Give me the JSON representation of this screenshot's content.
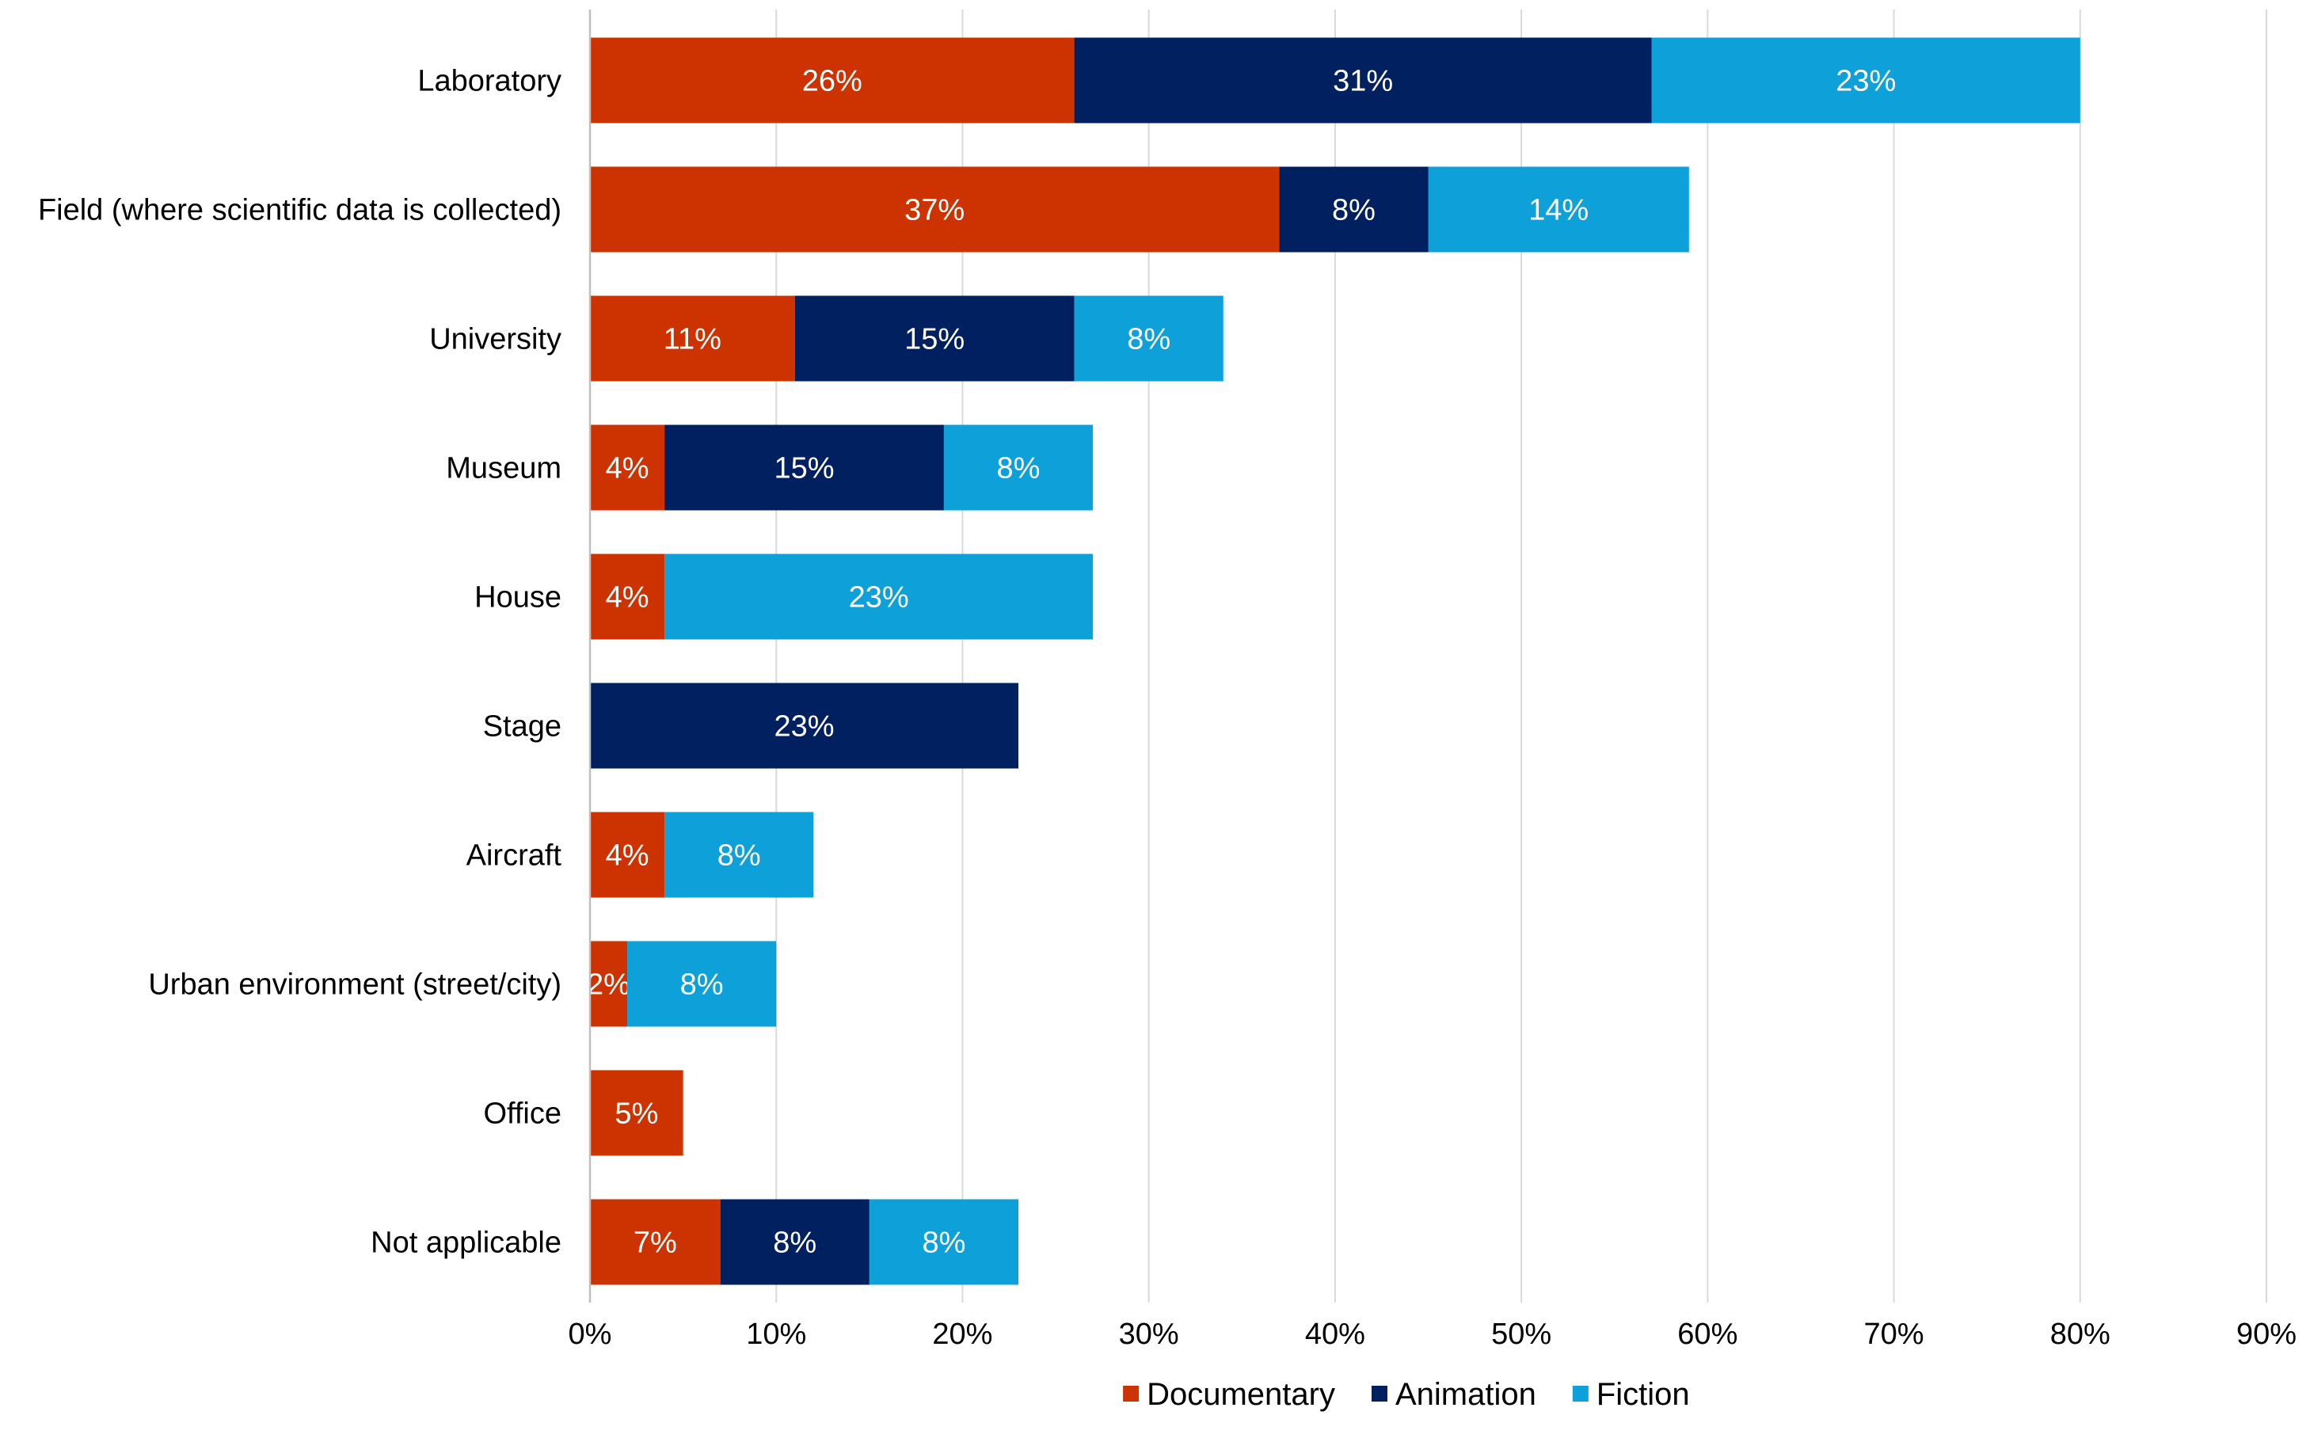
{
  "chart_data": {
    "type": "bar",
    "orientation": "horizontal",
    "stacked": true,
    "title": "",
    "xlabel": "",
    "ylabel": "",
    "xlim": [
      0,
      90
    ],
    "x_ticks": [
      0,
      10,
      20,
      30,
      40,
      50,
      60,
      70,
      80,
      90
    ],
    "x_tick_labels": [
      "0%",
      "10%",
      "20%",
      "30%",
      "40%",
      "50%",
      "60%",
      "70%",
      "80%",
      "90%"
    ],
    "grid": "vertical",
    "legend_position": "bottom",
    "categories": [
      "Laboratory",
      "Field (where scientific data is collected)",
      "University",
      "Museum",
      "House",
      "Stage",
      "Aircraft",
      "Urban environment (street/city)",
      "Office",
      "Not applicable"
    ],
    "series": [
      {
        "name": "Documentary",
        "color": "#cc3300",
        "values": [
          26,
          37,
          11,
          4,
          4,
          0,
          4,
          2,
          5,
          7
        ],
        "labels": [
          "26%",
          "37%",
          "11%",
          "4%",
          "4%",
          "",
          "4%",
          "2%",
          "5%",
          "7%"
        ]
      },
      {
        "name": "Animation",
        "color": "#002060",
        "values": [
          31,
          8,
          15,
          15,
          0,
          23,
          0,
          0,
          0,
          8
        ],
        "labels": [
          "31%",
          "8%",
          "15%",
          "15%",
          "",
          "23%",
          "",
          "",
          "",
          "8%"
        ]
      },
      {
        "name": "Fiction",
        "color": "#0ea0d8",
        "values": [
          23,
          14,
          8,
          8,
          23,
          0,
          8,
          8,
          0,
          8
        ],
        "labels": [
          "23%",
          "14%",
          "8%",
          "8%",
          "23%",
          "",
          "8%",
          "8%",
          "",
          "8%"
        ]
      }
    ],
    "colors": {
      "grid": "#d9d9d9",
      "axis": "#bfbfbf",
      "bar_label": "#ffffff"
    }
  }
}
